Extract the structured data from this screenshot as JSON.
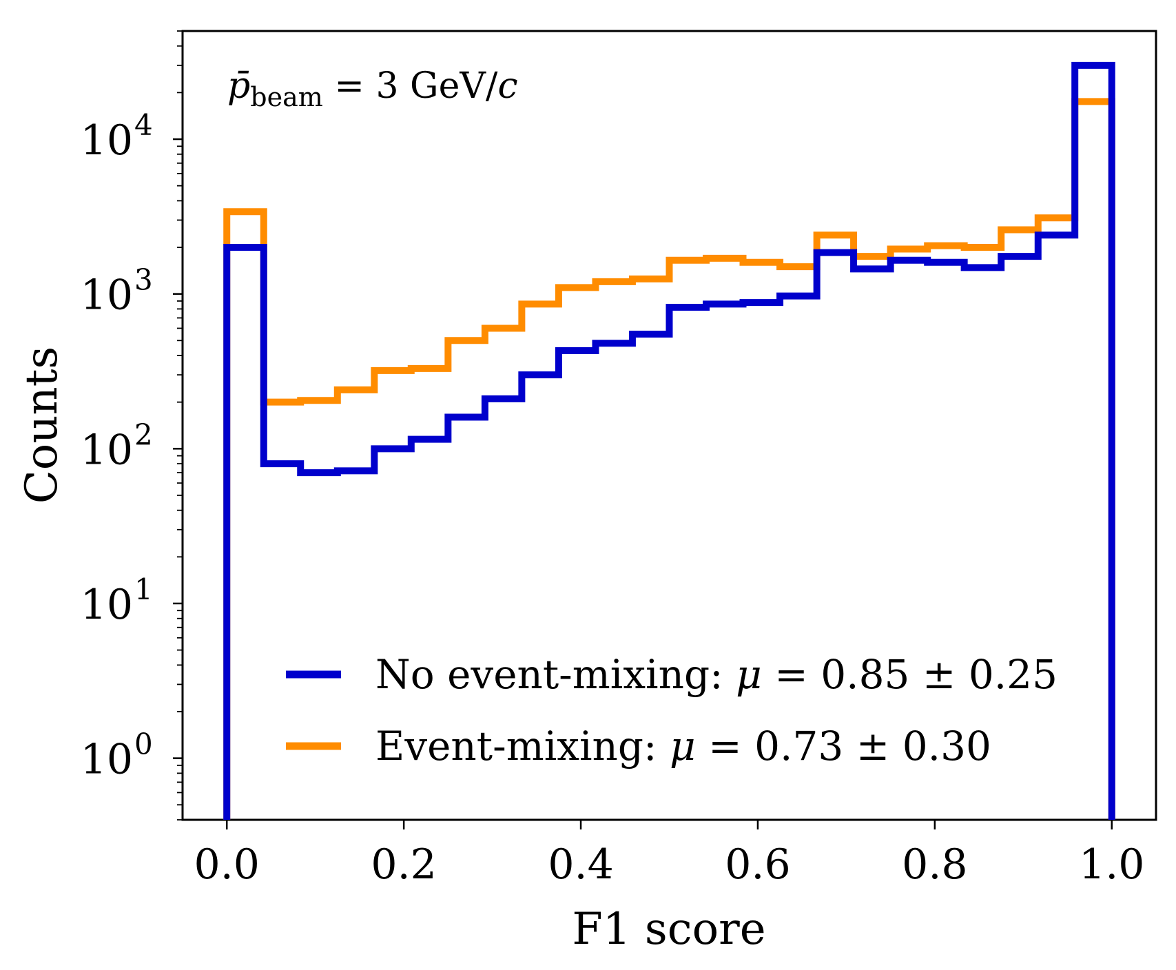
{
  "chart_data": {
    "type": "step-histogram",
    "xlabel": "F1 score",
    "ylabel": "Counts",
    "yscale": "log",
    "xlim": [
      -0.05,
      1.05
    ],
    "ylim": [
      0.4,
      50000
    ],
    "xticks": [
      {
        "value": 0.0,
        "label": "0.0"
      },
      {
        "value": 0.2,
        "label": "0.2"
      },
      {
        "value": 0.4,
        "label": "0.4"
      },
      {
        "value": 0.6,
        "label": "0.6"
      },
      {
        "value": 0.8,
        "label": "0.8"
      },
      {
        "value": 1.0,
        "label": "1.0"
      }
    ],
    "yticks": [
      {
        "value": 1,
        "base": "10",
        "exp": "0"
      },
      {
        "value": 10,
        "base": "10",
        "exp": "1"
      },
      {
        "value": 100,
        "base": "10",
        "exp": "2"
      },
      {
        "value": 1000,
        "base": "10",
        "exp": "3"
      },
      {
        "value": 10000,
        "base": "10",
        "exp": "4"
      }
    ],
    "bin_edges": [
      0.0,
      0.0417,
      0.0833,
      0.125,
      0.1667,
      0.2083,
      0.25,
      0.2917,
      0.3333,
      0.375,
      0.4167,
      0.4583,
      0.5,
      0.5417,
      0.5833,
      0.625,
      0.6667,
      0.7083,
      0.75,
      0.7917,
      0.8333,
      0.875,
      0.9167,
      0.9583,
      1.0
    ],
    "series": [
      {
        "name": "No event-mixing",
        "color": "#0000cc",
        "values": [
          2000,
          80,
          70,
          72,
          100,
          115,
          160,
          210,
          300,
          430,
          480,
          550,
          820,
          860,
          880,
          970,
          1850,
          1450,
          1650,
          1600,
          1480,
          1750,
          2400,
          30000
        ]
      },
      {
        "name": "Event-mixing",
        "color": "#ff8c00",
        "values": [
          3400,
          200,
          205,
          240,
          320,
          330,
          500,
          600,
          860,
          1100,
          1200,
          1250,
          1650,
          1700,
          1600,
          1500,
          2400,
          1750,
          1950,
          2050,
          2000,
          2600,
          3100,
          17500
        ]
      }
    ],
    "legend": {
      "placement": "lower-center",
      "entries": [
        {
          "name": "No event-mixing",
          "mu_symbol": "μ",
          "stat": "= 0.85 ± 0.25",
          "color": "#0000cc"
        },
        {
          "name": "Event-mixing",
          "mu_symbol": "μ",
          "stat": "= 0.73 ± 0.30",
          "color": "#ff8c00"
        }
      ]
    },
    "annotation": {
      "symbol": "p̄",
      "subscript": "beam",
      "value": " = 3 GeV/",
      "unit_italic": "c",
      "placement": "top-left"
    }
  }
}
